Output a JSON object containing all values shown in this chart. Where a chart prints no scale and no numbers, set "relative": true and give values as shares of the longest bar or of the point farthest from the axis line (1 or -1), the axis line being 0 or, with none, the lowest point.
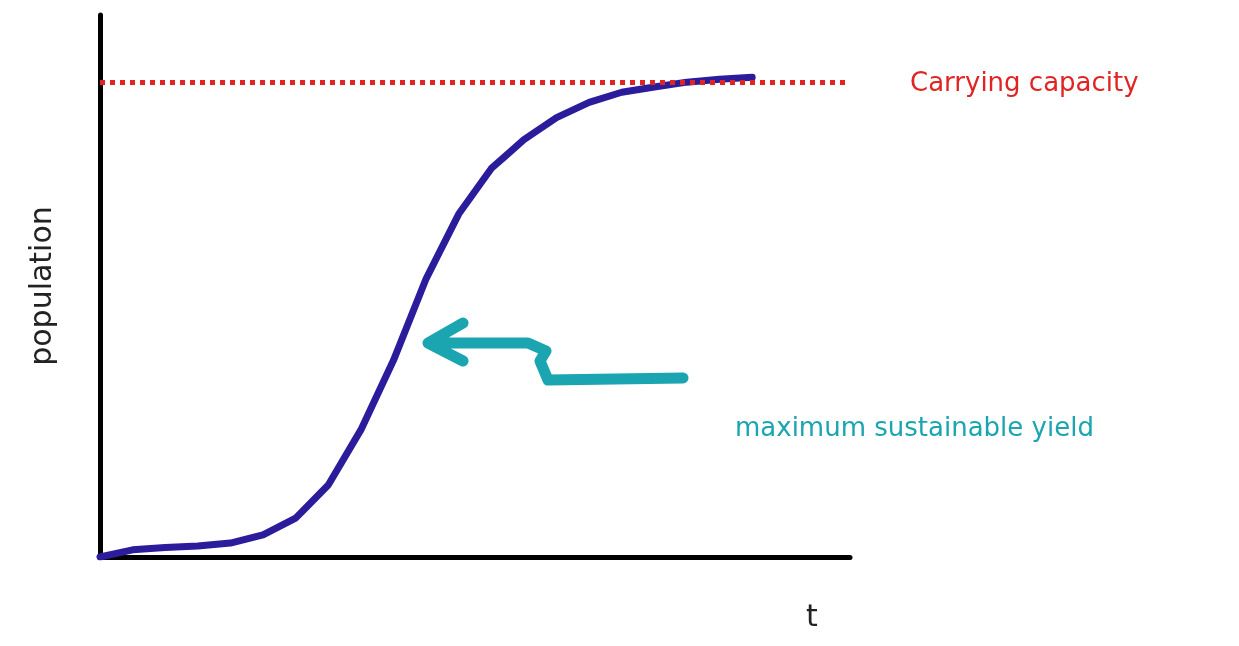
{
  "chart_data": {
    "type": "line",
    "relative": true,
    "xlabel": "t",
    "ylabel": "population",
    "categories": [
      null,
      null,
      null,
      null,
      null,
      null,
      null,
      null,
      null,
      null,
      null,
      null,
      null,
      null,
      null,
      null,
      null,
      null,
      null,
      null,
      null,
      null,
      null,
      null
    ],
    "series": [
      {
        "color": "#2b1c9c",
        "values": [
          0,
          0.015,
          0.02,
          0.023,
          0.029,
          0.046,
          0.081,
          0.15,
          0.265,
          0.41,
          0.58,
          0.715,
          0.81,
          0.87,
          0.916,
          0.948,
          0.969,
          0.98,
          0.99,
          0.996,
          1,
          null,
          null,
          null
        ]
      }
    ],
    "ref_lines": [
      {
        "axis": "y",
        "value": 0.99,
        "label": "Carrying capacity",
        "color": "#e02424",
        "line_style": "dotted"
      }
    ],
    "annotations": [
      "maximum sustainable yield"
    ],
    "marker": "none",
    "line_style": "solid",
    "grid": false
  }
}
